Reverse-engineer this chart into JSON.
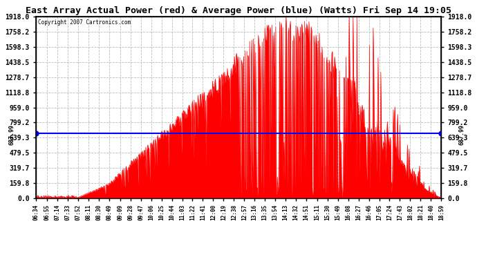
{
  "title": "East Array Actual Power (red) & Average Power (blue) (Watts) Fri Sep 14 19:05",
  "copyright_text": "Copyright 2007 Cartronics.com",
  "avg_power": 687.99,
  "yticks": [
    0.0,
    159.8,
    319.7,
    479.5,
    639.3,
    799.2,
    959.0,
    1118.8,
    1278.7,
    1438.5,
    1598.3,
    1758.2,
    1918.0
  ],
  "ymax": 1918.0,
  "ymin": 0.0,
  "bg_color": "#ffffff",
  "fill_color": "#ff0000",
  "line_color": "#0000ff",
  "grid_color": "#bbbbbb",
  "title_fontsize": 9.5,
  "xtick_labels": [
    "06:34",
    "06:55",
    "07:14",
    "07:33",
    "07:52",
    "08:11",
    "08:30",
    "08:49",
    "09:09",
    "09:28",
    "09:47",
    "10:06",
    "10:25",
    "10:44",
    "11:03",
    "11:22",
    "11:41",
    "12:00",
    "12:19",
    "12:38",
    "12:57",
    "13:16",
    "13:35",
    "13:54",
    "14:13",
    "14:32",
    "14:51",
    "15:11",
    "15:30",
    "15:49",
    "16:08",
    "16:27",
    "16:46",
    "17:05",
    "17:24",
    "17:43",
    "18:02",
    "18:21",
    "18:40",
    "18:59"
  ]
}
